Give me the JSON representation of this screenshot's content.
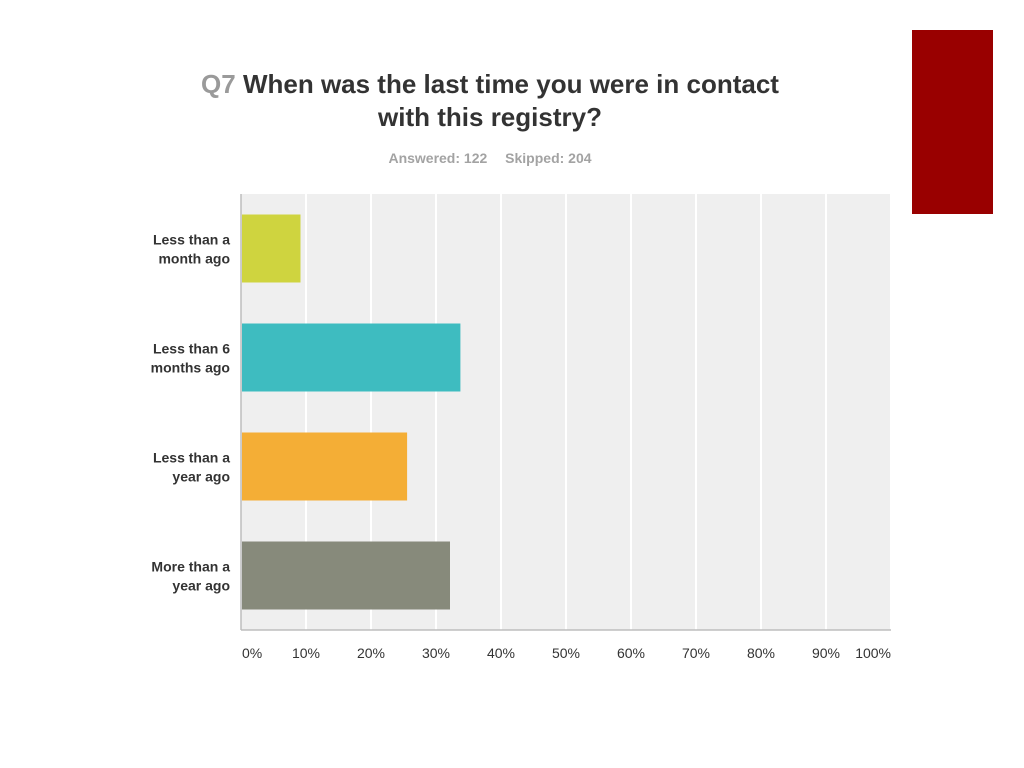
{
  "header": {
    "question_number": "Q7",
    "question_text": "When was the last time you were in contact with this registry?",
    "answered": "Answered: 122",
    "skipped": "Skipped: 204"
  },
  "decor": {
    "accent_color": "#990000"
  },
  "chart_data": {
    "type": "bar",
    "orientation": "horizontal",
    "categories": [
      [
        "Less than a",
        "month ago"
      ],
      [
        "Less than 6",
        "months ago"
      ],
      [
        "Less than a",
        "year ago"
      ],
      [
        "More than a",
        "year ago"
      ]
    ],
    "values": [
      9,
      33.6,
      25.4,
      32
    ],
    "colors": [
      "#cfd43f",
      "#3ebcc0",
      "#f4ae36",
      "#878a7b"
    ],
    "xlim": [
      0,
      100
    ],
    "ticks": [
      "0%",
      "10%",
      "20%",
      "30%",
      "40%",
      "50%",
      "60%",
      "70%",
      "80%",
      "90%",
      "100%"
    ],
    "grid": true,
    "title": "Q7 When was the last time you were in contact with this registry?",
    "xlabel": "",
    "ylabel": ""
  }
}
